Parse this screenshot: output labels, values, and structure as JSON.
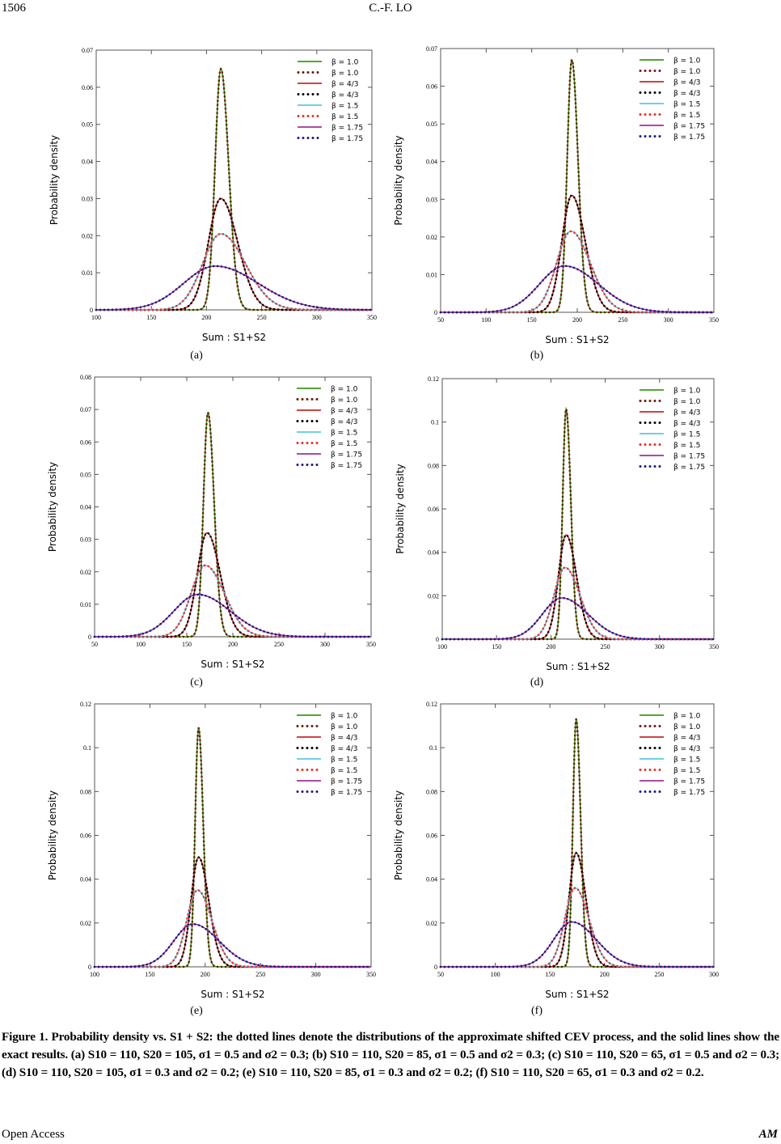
{
  "header": {
    "page_number": "1506",
    "running_head": "C.-F. LO"
  },
  "footer": {
    "left": "Open  Access",
    "right": "AM"
  },
  "caption": "Figure 1. Probability density vs. S1 + S2: the dotted lines denote the distributions of the approximate shifted CEV process, and the solid lines show the exact results. (a) S10 = 110, S20 = 105, σ1 = 0.5 and σ2 = 0.3; (b) S10 = 110, S20 = 85, σ1 = 0.5 and σ2 = 0.3; (c) S10 = 110, S20 = 65, σ1 = 0.5 and σ2 = 0.3; (d) S10 = 110, S20 = 105, σ1 = 0.3 and σ2 = 0.2; (e) S10 = 110, S20 = 85, σ1 = 0.3 and σ2 = 0.2; (f) S10 = 110, S20 = 65, σ1 = 0.3 and σ2 = 0.2.",
  "chart_data": [
    {
      "panel": "(a)",
      "type": "line",
      "ylabel": "Probability  density",
      "xlabel": "Sum :  S1+S2",
      "xlim": [
        100,
        350
      ],
      "ylim": [
        0,
        0.07
      ],
      "xticks": [
        "100",
        "150",
        "200",
        "250",
        "300",
        "350"
      ],
      "yticks": [
        "0",
        "0.01",
        "0.02",
        "0.03",
        "0.04",
        "0.05",
        "0.06",
        "0.07"
      ],
      "legend": "top-right",
      "modes": [
        213,
        213,
        213,
        208
      ],
      "peaks": [
        0.065,
        0.03,
        0.0205,
        0.0118
      ]
    },
    {
      "panel": "(b)",
      "type": "line",
      "ylabel": "Probability  density",
      "xlabel": "Sum :  S1+S2",
      "xlim": [
        50,
        350
      ],
      "ylim": [
        0,
        0.07
      ],
      "xticks": [
        "50",
        "100",
        "150",
        "200",
        "250",
        "300",
        "350"
      ],
      "yticks": [
        "0",
        "0.01",
        "0.02",
        "0.03",
        "0.04",
        "0.05",
        "0.06",
        "0.07"
      ],
      "legend": "top-right",
      "modes": [
        194,
        194,
        193,
        186
      ],
      "peaks": [
        0.067,
        0.031,
        0.0215,
        0.0123
      ]
    },
    {
      "panel": "(c)",
      "type": "line",
      "ylabel": "Probability  density",
      "xlabel": "Sum :  S1+S2",
      "xlim": [
        50,
        350
      ],
      "ylim": [
        0,
        0.08
      ],
      "xticks": [
        "50",
        "100",
        "150",
        "200",
        "250",
        "300",
        "350"
      ],
      "yticks": [
        "0",
        "0.01",
        "0.02",
        "0.03",
        "0.04",
        "0.05",
        "0.06",
        "0.07",
        "0.08"
      ],
      "legend": "top-right",
      "modes": [
        173,
        172,
        170,
        162
      ],
      "peaks": [
        0.069,
        0.032,
        0.022,
        0.013
      ]
    },
    {
      "panel": "(d)",
      "type": "line",
      "ylabel": "Probability  density",
      "xlabel": "Sum :  S1+S2",
      "xlim": [
        100,
        350
      ],
      "ylim": [
        0,
        0.12
      ],
      "xticks": [
        "100",
        "150",
        "200",
        "250",
        "300",
        "350"
      ],
      "yticks": [
        "0",
        "0.02",
        "0.04",
        "0.06",
        "0.08",
        "0.1",
        "0.12"
      ],
      "legend": "top-right",
      "modes": [
        214,
        214,
        213,
        210
      ],
      "peaks": [
        0.106,
        0.048,
        0.033,
        0.019
      ]
    },
    {
      "panel": "(e)",
      "type": "line",
      "ylabel": "Probability  density",
      "xlabel": "Sum :  S1+S2",
      "xlim": [
        100,
        350
      ],
      "ylim": [
        0,
        0.12
      ],
      "xticks": [
        "100",
        "150",
        "200",
        "250",
        "300",
        "350"
      ],
      "yticks": [
        "0",
        "0.02",
        "0.04",
        "0.06",
        "0.08",
        "0.1",
        "0.12"
      ],
      "legend": "top-right",
      "modes": [
        194,
        194,
        193,
        189
      ],
      "peaks": [
        0.109,
        0.05,
        0.035,
        0.0195
      ]
    },
    {
      "panel": "(f)",
      "type": "line",
      "ylabel": "Probability  density",
      "xlabel": "Sum :  S1+S2",
      "xlim": [
        50,
        300
      ],
      "ylim": [
        0,
        0.12
      ],
      "xticks": [
        "50",
        "100",
        "150",
        "200",
        "250",
        "300"
      ],
      "yticks": [
        "0",
        "0.02",
        "0.04",
        "0.06",
        "0.08",
        "0.1",
        "0.12"
      ],
      "legend": "top-right",
      "modes": [
        174,
        174,
        173,
        170
      ],
      "peaks": [
        0.113,
        0.052,
        0.036,
        0.0205
      ]
    }
  ],
  "series": [
    {
      "name": "β = 1.0",
      "style": "solid",
      "color": "#3a9a1a",
      "curve": 0
    },
    {
      "name": "β = 1.0",
      "style": "dotted",
      "color": "#6b1a0a",
      "curve": 0
    },
    {
      "name": "β = 4/3",
      "style": "solid",
      "color": "#c8282a",
      "curve": 1
    },
    {
      "name": "β = 4/3",
      "style": "dotted",
      "color": "#000000",
      "curve": 1
    },
    {
      "name": "β = 1.5",
      "style": "solid",
      "color": "#5cc8e0",
      "curve": 2
    },
    {
      "name": "β = 1.5",
      "style": "dotted",
      "color": "#e82e2e",
      "curve": 2
    },
    {
      "name": "β = 1.75",
      "style": "solid",
      "color": "#a0309a",
      "curve": 3
    },
    {
      "name": "β = 1.75",
      "style": "dotted",
      "color": "#1a1a80",
      "curve": 3
    }
  ]
}
